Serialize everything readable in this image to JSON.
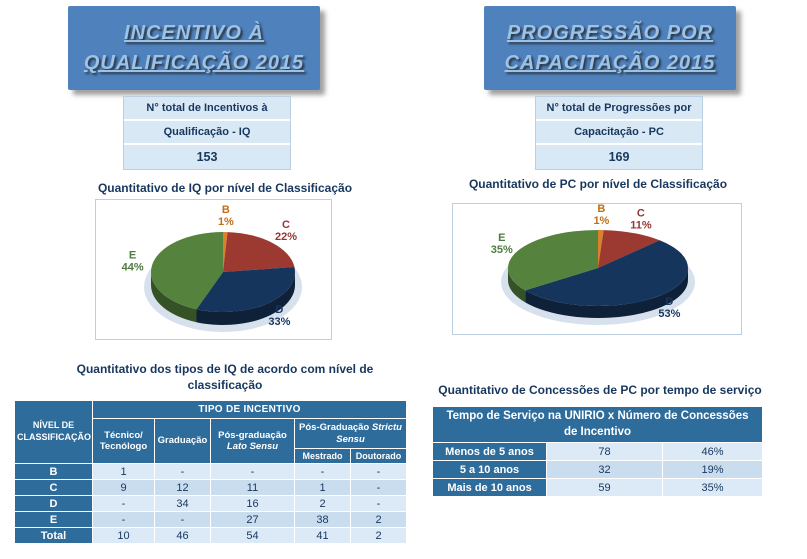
{
  "colors": {
    "banner_bg": "#4F81BD",
    "banner_text": "#9CC2E5",
    "header_bg": "#2E6C9C",
    "row_light": "#DCE9F6",
    "row_alt": "#C9DDEF",
    "box_bg": "#D9E8F5",
    "box_border": "#BCCFE0",
    "text_dark": "#17375E"
  },
  "left": {
    "banner": {
      "line1": "INCENTIVO À",
      "line2": "QUALIFICAÇÃO 2015"
    },
    "total_box": {
      "line1": "N° total de Incentivos à",
      "line2": "Qualificação - IQ",
      "value": "153"
    },
    "section_title_line1": "Quantitativo dos tipos de IQ de acordo com nível de",
    "section_title_line2": "classificação"
  },
  "right": {
    "banner": {
      "line1": "PROGRESSÃO POR",
      "line2": "CAPACITAÇÃO 2015"
    },
    "total_box": {
      "line1": "N° total de Progressões por",
      "line2": "Capacitação - PC",
      "value": "169"
    },
    "section_title": "Quantitativo de Concessões de PC por tempo de serviço"
  },
  "chart_data": [
    {
      "type": "pie",
      "title": "Quantitativo de IQ por nível de Classificação",
      "labels": [
        "B",
        "C",
        "D",
        "E"
      ],
      "values": [
        1,
        22,
        33,
        44
      ],
      "unit": "%",
      "colors": [
        "#D9822B",
        "#9C3A32",
        "#16355C",
        "#55833E"
      ],
      "label_colors": [
        "#BF6F17",
        "#943634",
        "#17375E",
        "#4F7B3F"
      ],
      "start_angle_deg": 0,
      "direction": "clockwise",
      "style": "3d",
      "legend": "none"
    },
    {
      "type": "pie",
      "title": "Quantitativo de PC por nível de Classificação",
      "labels": [
        "B",
        "C",
        "D",
        "E"
      ],
      "values": [
        1,
        11,
        53,
        35
      ],
      "unit": "%",
      "colors": [
        "#D9822B",
        "#9C3A32",
        "#16355C",
        "#55833E"
      ],
      "label_colors": [
        "#BF6F17",
        "#943634",
        "#17375E",
        "#4F7B3F"
      ],
      "start_angle_deg": 0,
      "direction": "clockwise",
      "style": "3d",
      "legend": "none"
    }
  ],
  "left_table": {
    "corner_line1": "NÍVEL DE",
    "corner_line2": "CLASSIFICAÇÃO",
    "group_header": "TIPO DE INCENTIVO",
    "col_tecnico_1": "Técnico/",
    "col_tecnico_2": "Tecnólogo",
    "col_graduacao": "Graduação",
    "col_lato_1": "Pós-graduação",
    "col_lato_2": "Lato Sensu",
    "col_strictu_1": "Pós-Graduação",
    "col_strictu_2": "Strictu Sensu",
    "col_mestrado": "Mestrado",
    "col_doutorado": "Doutorado",
    "rows": [
      {
        "label": "B",
        "cells": [
          "1",
          "-",
          "-",
          "-",
          "-"
        ]
      },
      {
        "label": "C",
        "cells": [
          "9",
          "12",
          "11",
          "1",
          "-"
        ]
      },
      {
        "label": "D",
        "cells": [
          "-",
          "34",
          "16",
          "2",
          "-"
        ]
      },
      {
        "label": "E",
        "cells": [
          "-",
          "-",
          "27",
          "38",
          "2"
        ]
      },
      {
        "label": "Total",
        "cells": [
          "10",
          "46",
          "54",
          "41",
          "2"
        ]
      }
    ]
  },
  "right_table": {
    "header": "Tempo de Serviço na UNIRIO x Número de Concessões de Incentivo",
    "rows": [
      {
        "label": "Menos de 5 anos",
        "count": "78",
        "pct": "46%"
      },
      {
        "label": "5 a 10 anos",
        "count": "32",
        "pct": "19%"
      },
      {
        "label": "Mais de 10 anos",
        "count": "59",
        "pct": "35%"
      }
    ]
  }
}
